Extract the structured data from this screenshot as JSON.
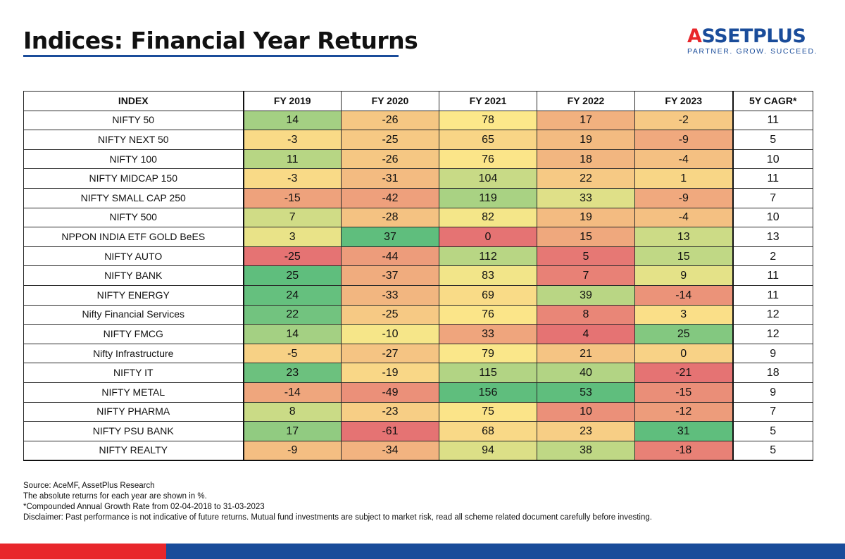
{
  "title": "Indices: Financial Year Returns",
  "logo": {
    "name_prefix": "A",
    "name_rest": "SSETPLUS",
    "tagline": "PARTNER. GROW. SUCCEED."
  },
  "colors": {
    "brand_blue": "#1a4c9a",
    "brand_red": "#e8262b",
    "heat_low": "#e57373",
    "heat_mid": "#fce88a",
    "heat_high": "#5fbe7d"
  },
  "chart_data": {
    "type": "table",
    "title": "Indices: Financial Year Returns",
    "columns": [
      "INDEX",
      "FY 2019",
      "FY 2020",
      "FY 2021",
      "FY 2022",
      "FY 2023",
      "5Y CAGR*"
    ],
    "rows": [
      {
        "index": "NIFTY 50",
        "values": [
          14,
          -26,
          78,
          17,
          -2
        ],
        "cagr": 11
      },
      {
        "index": "NIFTY NEXT 50",
        "values": [
          -3,
          -25,
          65,
          19,
          -9
        ],
        "cagr": 5
      },
      {
        "index": "NIFTY 100",
        "values": [
          11,
          -26,
          76,
          18,
          -4
        ],
        "cagr": 10
      },
      {
        "index": "NIFTY MIDCAP 150",
        "values": [
          -3,
          -31,
          104,
          22,
          1
        ],
        "cagr": 11
      },
      {
        "index": "NIFTY SMALL CAP 250",
        "values": [
          -15,
          -42,
          119,
          33,
          -9
        ],
        "cagr": 7
      },
      {
        "index": "NIFTY 500",
        "values": [
          7,
          -28,
          82,
          19,
          -4
        ],
        "cagr": 10
      },
      {
        "index": "NPPON INDIA ETF GOLD BeES",
        "values": [
          3,
          37,
          0,
          15,
          13
        ],
        "cagr": 13
      },
      {
        "index": "NIFTY AUTO",
        "values": [
          -25,
          -44,
          112,
          5,
          15
        ],
        "cagr": 2
      },
      {
        "index": "NIFTY BANK",
        "values": [
          25,
          -37,
          83,
          7,
          9
        ],
        "cagr": 11
      },
      {
        "index": "NIFTY ENERGY",
        "values": [
          24,
          -33,
          69,
          39,
          -14
        ],
        "cagr": 11
      },
      {
        "index": "Nifty Financial Services",
        "values": [
          22,
          -25,
          76,
          8,
          3
        ],
        "cagr": 12
      },
      {
        "index": "NIFTY FMCG",
        "values": [
          14,
          -10,
          33,
          4,
          25
        ],
        "cagr": 12
      },
      {
        "index": "Nifty Infrastructure",
        "values": [
          -5,
          -27,
          79,
          21,
          0
        ],
        "cagr": 9
      },
      {
        "index": "NIFTY IT",
        "values": [
          23,
          -19,
          115,
          40,
          -21
        ],
        "cagr": 18
      },
      {
        "index": "NIFTY METAL",
        "values": [
          -14,
          -49,
          156,
          53,
          -15
        ],
        "cagr": 9
      },
      {
        "index": "NIFTY PHARMA",
        "values": [
          8,
          -23,
          75,
          10,
          -12
        ],
        "cagr": 7
      },
      {
        "index": "NIFTY PSU BANK",
        "values": [
          17,
          -61,
          68,
          23,
          31
        ],
        "cagr": 5
      },
      {
        "index": "NIFTY REALTY",
        "values": [
          -9,
          -34,
          94,
          38,
          -18
        ],
        "cagr": 5
      }
    ]
  },
  "notes": [
    "Source: AceMF, AssetPlus Research",
    "The absolute returns for each year are shown in %.",
    "*Compounded Annual Growth Rate from 02-04-2018 to 31-03-2023",
    "Disclaimer: Past performance is not indicative of future returns. Mutual fund investments are subject to market risk, read all scheme related document carefully before investing."
  ]
}
